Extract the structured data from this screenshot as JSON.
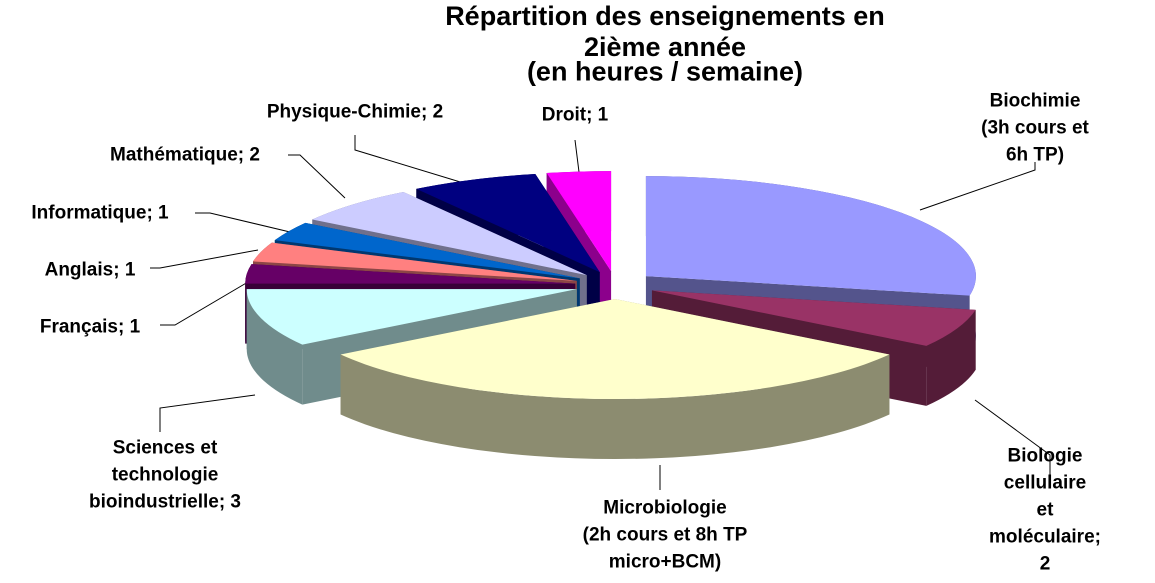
{
  "chart_data": {
    "type": "pie3d",
    "title": "Répartition des enseignements en 2ième année",
    "subtitle": "(en heures / semaine)",
    "categories": [
      "Biochimie\n(3h cours et 6h TP)",
      "Biologie cellulaire\net moléculaire; 2",
      "Microbiologie\n(2h cours et 8h TP\nmicro+BCM)",
      "Sciences et\ntechnologie\nbioindustrielle; 3",
      "Français; 1",
      "Anglais; 1",
      "Informatique; 1",
      "Mathématique; 2",
      "Physique-Chimie; 2",
      "Droit; 1"
    ],
    "values": [
      9,
      2,
      10,
      3,
      1,
      1,
      1,
      2,
      2,
      1
    ],
    "colors": [
      "#9999ff",
      "#993366",
      "#ffffcc",
      "#ccffff",
      "#660066",
      "#ff8080",
      "#0066cc",
      "#ccccff",
      "#000080",
      "#ff00ff"
    ]
  }
}
